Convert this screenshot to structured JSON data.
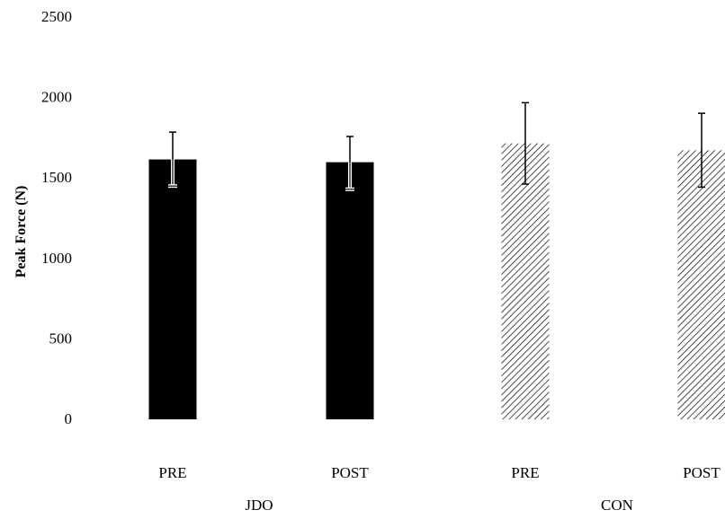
{
  "chart_data": {
    "type": "bar",
    "title": "",
    "xlabel": "",
    "ylabel": "Peak Force (N)",
    "ylim": [
      0,
      2500
    ],
    "yticks": [
      0,
      500,
      1000,
      1500,
      2000,
      2500
    ],
    "groups": [
      "JDO",
      "CON"
    ],
    "bars": [
      {
        "group": "JDO",
        "label": "PRE",
        "value": 1615,
        "error_upper": 1785,
        "error_lower": 1450,
        "fill": "solid"
      },
      {
        "group": "JDO",
        "label": "POST",
        "value": 1598,
        "error_upper": 1758,
        "error_lower": 1430,
        "fill": "solid"
      },
      {
        "group": "CON",
        "label": "PRE",
        "value": 1715,
        "error_upper": 1968,
        "error_lower": 1462,
        "fill": "hatched"
      },
      {
        "group": "CON",
        "label": "POST",
        "value": 1672,
        "error_upper": 1902,
        "error_lower": 1443,
        "fill": "hatched"
      }
    ],
    "grid": false,
    "legend": "none",
    "colors": {
      "solid": "#000000",
      "hatched": "#000000",
      "background": "#ffffff"
    }
  }
}
